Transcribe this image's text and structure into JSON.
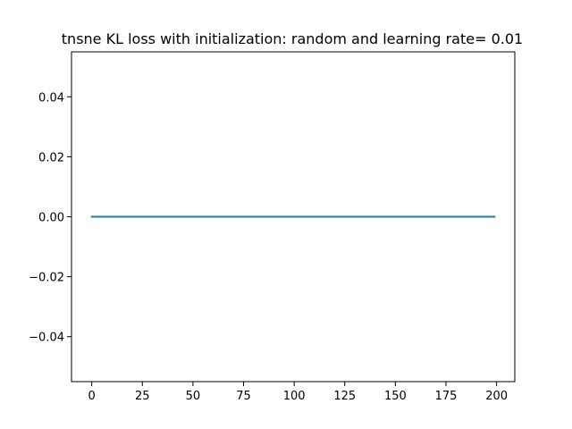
{
  "chart_data": {
    "type": "line",
    "title": "tnsne KL loss with initialization: random and learning rate= 0.01",
    "xlabel": "",
    "ylabel": "",
    "xlim": [
      -10,
      209
    ],
    "ylim": [
      -0.055,
      0.055
    ],
    "x_ticks": [
      0,
      25,
      50,
      75,
      100,
      125,
      150,
      175,
      200
    ],
    "x_tick_labels": [
      "0",
      "25",
      "50",
      "75",
      "100",
      "125",
      "150",
      "175",
      "200"
    ],
    "y_ticks": [
      0.04,
      0.02,
      0.0,
      -0.02,
      -0.04
    ],
    "y_tick_labels": [
      "0.04",
      "0.02",
      "0.00",
      "−0.02",
      "−0.04"
    ],
    "grid": false,
    "legend": "none",
    "series": [
      {
        "color": "#1f77b4",
        "x": [
          0,
          199
        ],
        "y": [
          0.0,
          0.0
        ]
      }
    ]
  }
}
